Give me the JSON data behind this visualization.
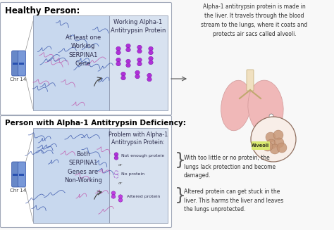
{
  "bg_color": "#f8f8f8",
  "title_healthy": "Healthy Person:",
  "title_deficiency": "Person with Alpha-1 Antitrypsin Deficiency:",
  "box_border": "#b0b8c8",
  "text_serpina1_healthy": "At least one\nWorking\nSERPINA1\nGene",
  "text_serpina1_deficiency": "Both\nSERPINA1\nGenes are\nNon-Working",
  "label_healthy_protein": "Working Alpha-1\nAntitrypsin Protein",
  "label_deficiency_protein": "Problem with Alpha-1\nAntitrypsin Protein:",
  "chr14_label": "Chr 14",
  "protein_color": "#b030d8",
  "dna_blue": "#2040a0",
  "dna_pink": "#c040a0",
  "right_text_top": "Alpha-1 antitrypsin protein is made in\nthe liver. It travels through the blood\nstream to the lungs, where it coats and\nprotects air sacs called alveoli.",
  "right_text_bottom1": "With too little or no protein, the\nlungs lack protection and become\ndamaged.",
  "right_text_bottom2": "Altered protein can get stuck in the\nliver. This harms the liver and leaves\nthe lungs unprotected.",
  "alveoli_label": "Alveoli",
  "lung_color": "#f0b8b8",
  "lung_shadow": "#e8a0a0",
  "alveoli_color": "#c89070",
  "deficiency_items": [
    "Not enough protein",
    "No protein",
    "Altered protein"
  ],
  "font_size_title": 8.5,
  "font_size_text": 5.5,
  "font_size_label": 6.0,
  "font_size_chr": 5.0,
  "font_size_right": 5.8,
  "font_size_brace_text": 5.5
}
